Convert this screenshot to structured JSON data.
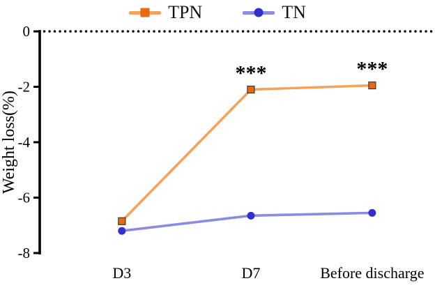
{
  "chart_data": {
    "type": "line",
    "categories": [
      "D3",
      "D7",
      "Before discharge"
    ],
    "series": [
      {
        "name": "TPN",
        "values": [
          -6.85,
          -2.1,
          -1.95
        ],
        "line_color": "#F5A35C",
        "marker_color": "#E8690F",
        "marker": "square"
      },
      {
        "name": "TN",
        "values": [
          -7.2,
          -6.65,
          -6.55
        ],
        "line_color": "#8B8BE2",
        "marker_color": "#3030CE",
        "marker": "circle"
      }
    ],
    "ylabel": "Weight loss(%)",
    "ylim": [
      -8,
      0
    ],
    "yticks": [
      0,
      -2,
      -4,
      -6,
      -8
    ],
    "baseline": {
      "y": 0,
      "style": "dotted"
    },
    "annotations": [
      {
        "text": "***",
        "series_index": 0,
        "category_index": 1
      },
      {
        "text": "***",
        "series_index": 0,
        "category_index": 2
      }
    ],
    "legend_position": "top",
    "grid": false,
    "axis_color": "#000000"
  }
}
